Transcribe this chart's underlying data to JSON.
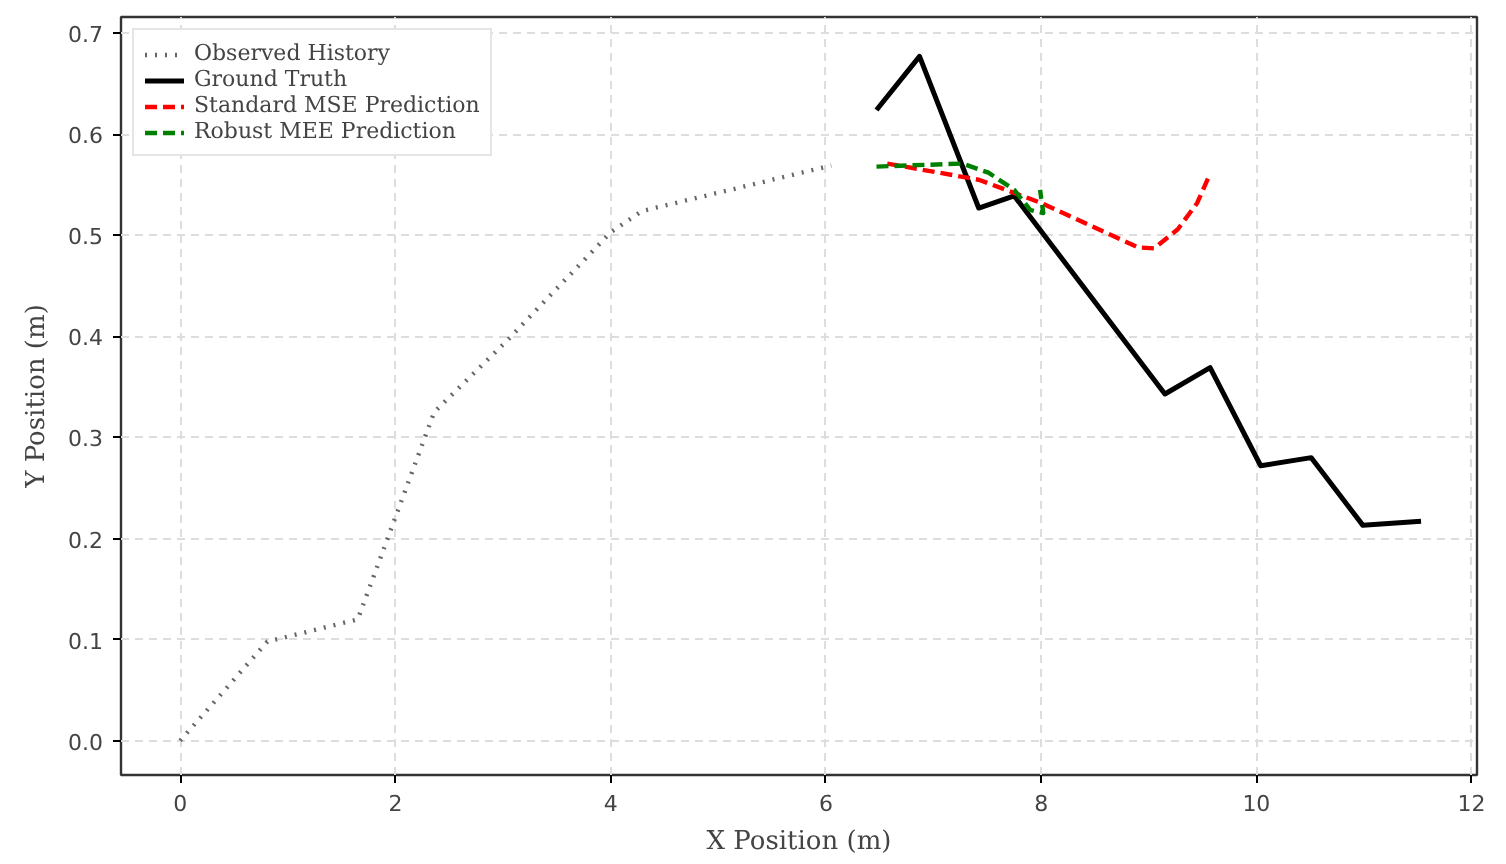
{
  "chart_data": {
    "type": "line",
    "xlabel": "X Position (m)",
    "ylabel": "Y Position (m)",
    "xlim": [
      -0.55,
      12.05
    ],
    "xticks": [
      0,
      2,
      4,
      6,
      8,
      10,
      12
    ],
    "ylim": [
      -0.034,
      0.716
    ],
    "yticks": [
      {
        "value": 0,
        "label": "0.0"
      },
      {
        "value": 0.1,
        "label": "0.1"
      },
      {
        "value": 0.2,
        "label": "0.2"
      },
      {
        "value": 0.3,
        "label": "0.3"
      },
      {
        "value": 0.4,
        "label": "0.4"
      },
      {
        "value": 0.5,
        "label": "0.5"
      },
      {
        "value": 0.6,
        "label": "0.6"
      },
      {
        "value": 0.7,
        "label": "0.7"
      }
    ],
    "grid": true,
    "legend": "top left",
    "marker": "none",
    "series": [
      {
        "name": "Observed History",
        "color": "#666666",
        "line_style": "dotted",
        "x": [
          0,
          0.81,
          1.65,
          2.36,
          3.02,
          4.0,
          4.29,
          6.05
        ],
        "values": [
          0,
          0.098,
          0.12,
          0.325,
          0.394,
          0.503,
          0.524,
          0.569
        ]
      },
      {
        "name": "Ground Truth",
        "color": "#000000",
        "line_style": "solid",
        "x": [
          6.47,
          6.87,
          7.42,
          7.75,
          9.15,
          9.57,
          10.04,
          10.51,
          10.99,
          11.53
        ],
        "values": [
          0.624,
          0.677,
          0.527,
          0.539,
          0.343,
          0.369,
          0.272,
          0.28,
          0.213,
          0.217
        ]
      },
      {
        "name": "Standard MSE Prediction",
        "color": "#ff0000",
        "line_style": "dashed",
        "x": [
          6.57,
          7.42,
          8.0,
          8.9,
          9.05,
          9.27,
          9.45,
          9.57
        ],
        "values": [
          0.571,
          0.555,
          0.532,
          0.488,
          0.487,
          0.506,
          0.532,
          0.561
        ]
      },
      {
        "name": "Robust MEE Prediction",
        "color": "#008000",
        "line_style": "dashed",
        "x": [
          6.47,
          7.27,
          7.51,
          7.75,
          7.9,
          8.02,
          7.99
        ],
        "values": [
          0.568,
          0.571,
          0.562,
          0.545,
          0.525,
          0.522,
          0.545
        ]
      }
    ]
  }
}
